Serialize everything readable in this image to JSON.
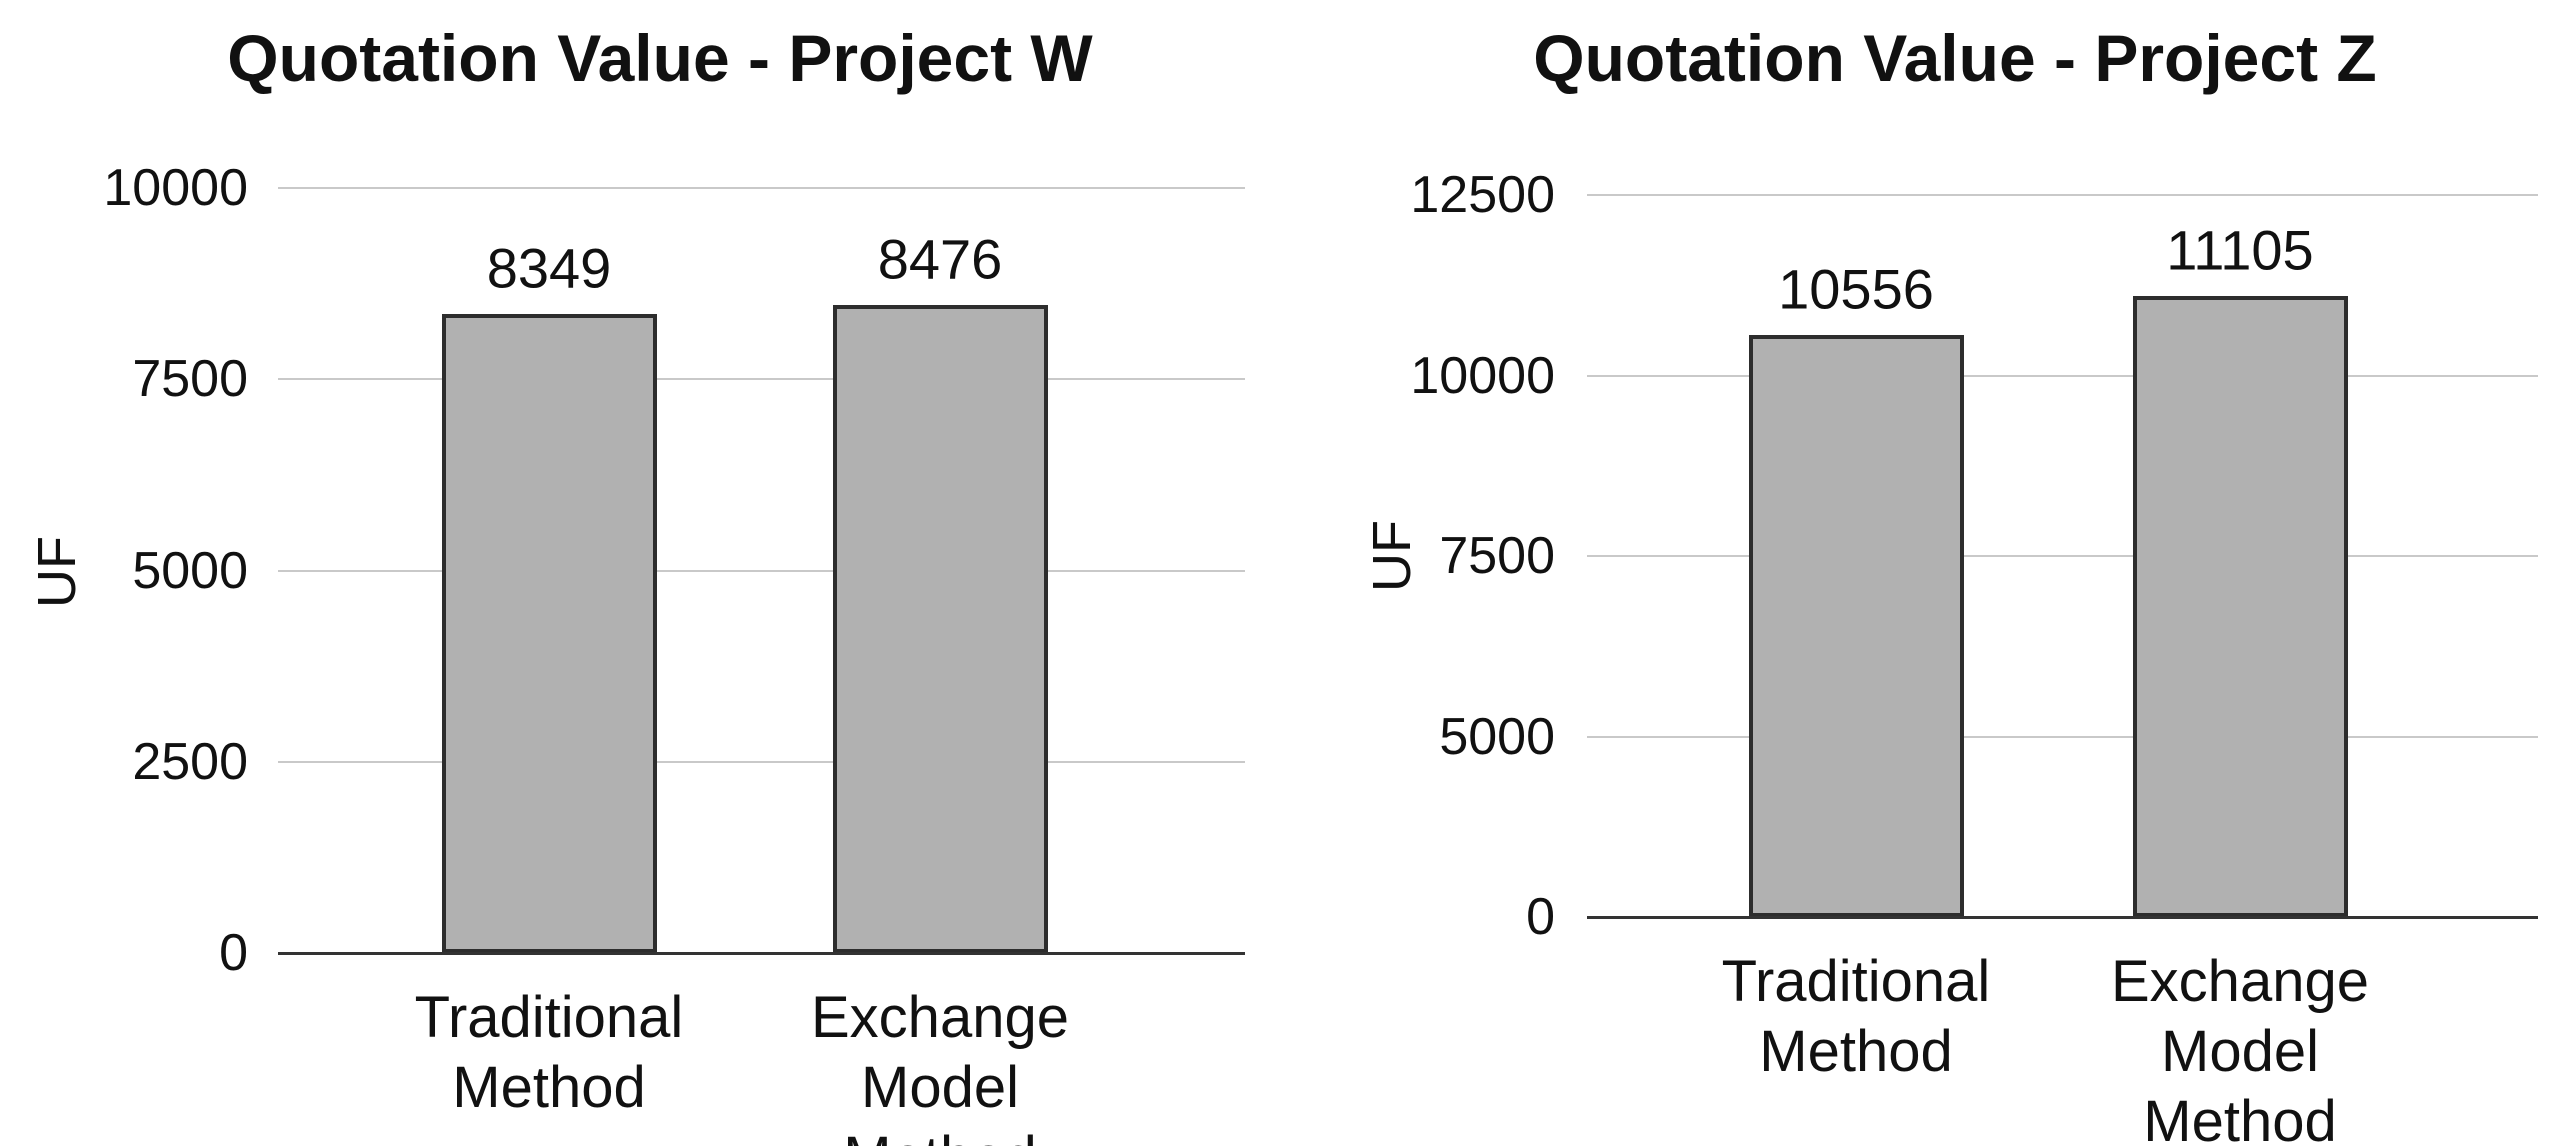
{
  "colors": {
    "background": "#ffffff",
    "text": "#111111",
    "bar_fill": "#b1b1b1",
    "bar_border": "#2d2d2d",
    "gridline": "#c9c9c9",
    "axis_line": "#333333"
  },
  "chart_data": [
    {
      "type": "bar",
      "title": "Quotation Value - Project W",
      "ylabel": "UF",
      "xlabel": "",
      "categories": [
        "Traditional\nMethod",
        "Exchange\nModel Method"
      ],
      "values": [
        8349,
        8476
      ],
      "value_labels": [
        "8349",
        "8476"
      ],
      "yticks": [
        0,
        2500,
        5000,
        7500,
        10000
      ],
      "ylim": [
        0,
        10000
      ],
      "grid": true,
      "legend": "none"
    },
    {
      "type": "bar",
      "title": "Quotation Value - Project Z",
      "ylabel": "UF",
      "xlabel": "",
      "categories": [
        "Traditional\nMethod",
        "Exchange\nModel Method"
      ],
      "values": [
        10556,
        11105
      ],
      "value_labels": [
        "10556",
        "11105"
      ],
      "yticks": [
        0,
        5000,
        7500,
        10000,
        12500
      ],
      "ylim": [
        0,
        12500
      ],
      "grid": true,
      "legend": "none"
    }
  ]
}
